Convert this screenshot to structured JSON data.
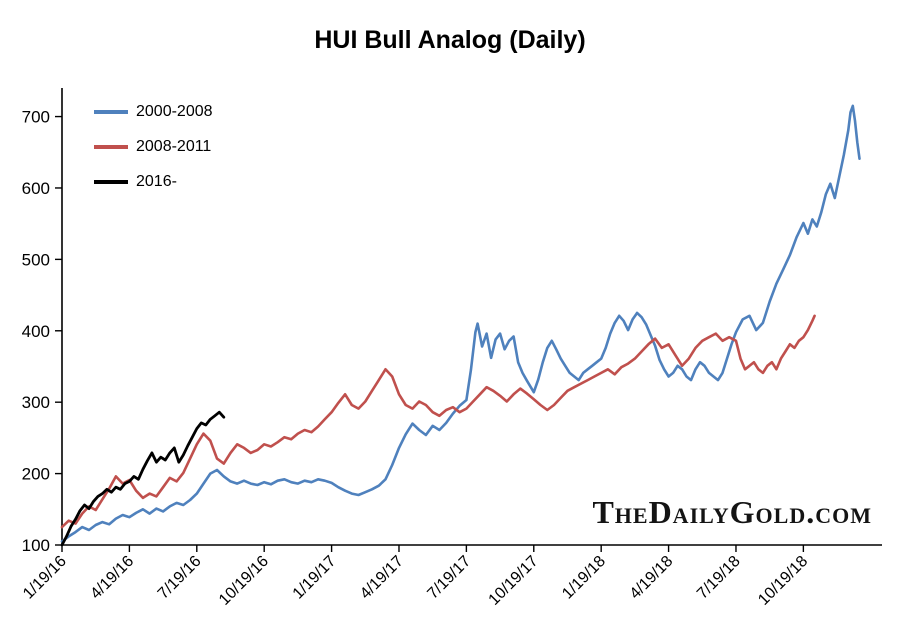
{
  "watermark": "TheDailyGold.com",
  "chart_data": {
    "type": "line",
    "title": "HUI Bull Analog (Daily)",
    "xlabel": "",
    "ylabel": "",
    "x_unit": "months since 1/19 start of each analog",
    "grid": false,
    "legend_position": "top-left-inside",
    "xlim": [
      0,
      36.5
    ],
    "ylim": [
      100,
      740
    ],
    "y_ticks": [
      100,
      200,
      300,
      400,
      500,
      600,
      700
    ],
    "x_tick_positions": [
      0,
      3,
      6,
      9,
      12,
      15,
      18,
      21,
      24,
      27,
      30,
      33
    ],
    "x_tick_labels": [
      "1/19/16",
      "4/19/16",
      "7/19/16",
      "10/19/16",
      "1/19/17",
      "4/19/17",
      "7/19/17",
      "10/19/17",
      "1/19/18",
      "4/19/18",
      "7/19/18",
      "10/19/18"
    ],
    "series": [
      {
        "name": "2000-2008",
        "color": "#4F81BD",
        "width": 2.6,
        "points": [
          [
            0,
            105
          ],
          [
            0.3,
            112
          ],
          [
            0.6,
            118
          ],
          [
            0.9,
            125
          ],
          [
            1.2,
            121
          ],
          [
            1.5,
            128
          ],
          [
            1.8,
            132
          ],
          [
            2.1,
            129
          ],
          [
            2.4,
            137
          ],
          [
            2.7,
            142
          ],
          [
            3,
            139
          ],
          [
            3.3,
            145
          ],
          [
            3.6,
            150
          ],
          [
            3.9,
            144
          ],
          [
            4.2,
            151
          ],
          [
            4.5,
            147
          ],
          [
            4.8,
            154
          ],
          [
            5.1,
            159
          ],
          [
            5.4,
            156
          ],
          [
            5.7,
            163
          ],
          [
            6,
            172
          ],
          [
            6.3,
            186
          ],
          [
            6.6,
            200
          ],
          [
            6.9,
            205
          ],
          [
            7.2,
            196
          ],
          [
            7.5,
            189
          ],
          [
            7.8,
            186
          ],
          [
            8.1,
            190
          ],
          [
            8.4,
            186
          ],
          [
            8.7,
            184
          ],
          [
            9,
            188
          ],
          [
            9.3,
            185
          ],
          [
            9.6,
            190
          ],
          [
            9.9,
            192
          ],
          [
            10.2,
            188
          ],
          [
            10.5,
            186
          ],
          [
            10.8,
            190
          ],
          [
            11.1,
            188
          ],
          [
            11.4,
            192
          ],
          [
            11.7,
            190
          ],
          [
            12,
            187
          ],
          [
            12.3,
            181
          ],
          [
            12.6,
            176
          ],
          [
            12.9,
            172
          ],
          [
            13.2,
            170
          ],
          [
            13.5,
            174
          ],
          [
            13.8,
            178
          ],
          [
            14.1,
            183
          ],
          [
            14.4,
            192
          ],
          [
            14.7,
            212
          ],
          [
            15,
            236
          ],
          [
            15.3,
            255
          ],
          [
            15.6,
            270
          ],
          [
            15.9,
            261
          ],
          [
            16.2,
            254
          ],
          [
            16.5,
            267
          ],
          [
            16.8,
            261
          ],
          [
            17.1,
            271
          ],
          [
            17.4,
            284
          ],
          [
            17.7,
            295
          ],
          [
            18,
            303
          ],
          [
            18.2,
            345
          ],
          [
            18.4,
            398
          ],
          [
            18.5,
            410
          ],
          [
            18.7,
            378
          ],
          [
            18.9,
            396
          ],
          [
            19.1,
            362
          ],
          [
            19.3,
            388
          ],
          [
            19.5,
            396
          ],
          [
            19.7,
            374
          ],
          [
            19.9,
            386
          ],
          [
            20.1,
            392
          ],
          [
            20.3,
            356
          ],
          [
            20.5,
            341
          ],
          [
            20.7,
            330
          ],
          [
            21,
            314
          ],
          [
            21.2,
            332
          ],
          [
            21.4,
            356
          ],
          [
            21.6,
            376
          ],
          [
            21.8,
            386
          ],
          [
            22,
            374
          ],
          [
            22.2,
            361
          ],
          [
            22.4,
            351
          ],
          [
            22.6,
            341
          ],
          [
            22.8,
            336
          ],
          [
            23,
            331
          ],
          [
            23.2,
            341
          ],
          [
            23.4,
            346
          ],
          [
            23.6,
            351
          ],
          [
            23.8,
            356
          ],
          [
            24,
            361
          ],
          [
            24.2,
            376
          ],
          [
            24.4,
            396
          ],
          [
            24.6,
            411
          ],
          [
            24.8,
            421
          ],
          [
            25,
            414
          ],
          [
            25.2,
            401
          ],
          [
            25.4,
            416
          ],
          [
            25.6,
            425
          ],
          [
            25.8,
            419
          ],
          [
            26,
            409
          ],
          [
            26.2,
            394
          ],
          [
            26.4,
            379
          ],
          [
            26.6,
            359
          ],
          [
            26.8,
            346
          ],
          [
            27,
            336
          ],
          [
            27.2,
            341
          ],
          [
            27.4,
            351
          ],
          [
            27.6,
            346
          ],
          [
            27.8,
            336
          ],
          [
            28,
            331
          ],
          [
            28.2,
            346
          ],
          [
            28.4,
            356
          ],
          [
            28.6,
            351
          ],
          [
            28.8,
            341
          ],
          [
            29,
            336
          ],
          [
            29.2,
            331
          ],
          [
            29.4,
            341
          ],
          [
            29.6,
            361
          ],
          [
            29.8,
            381
          ],
          [
            30,
            398
          ],
          [
            30.3,
            416
          ],
          [
            30.6,
            421
          ],
          [
            30.9,
            401
          ],
          [
            31.2,
            411
          ],
          [
            31.5,
            441
          ],
          [
            31.8,
            466
          ],
          [
            32.1,
            486
          ],
          [
            32.4,
            506
          ],
          [
            32.7,
            531
          ],
          [
            33,
            551
          ],
          [
            33.2,
            536
          ],
          [
            33.4,
            556
          ],
          [
            33.6,
            546
          ],
          [
            33.8,
            566
          ],
          [
            34,
            591
          ],
          [
            34.2,
            606
          ],
          [
            34.4,
            586
          ],
          [
            34.6,
            616
          ],
          [
            34.8,
            646
          ],
          [
            35,
            681
          ],
          [
            35.1,
            706
          ],
          [
            35.2,
            715
          ],
          [
            35.3,
            694
          ],
          [
            35.4,
            664
          ],
          [
            35.5,
            641
          ]
        ]
      },
      {
        "name": "2008-2011",
        "color": "#C0504D",
        "width": 2.6,
        "points": [
          [
            0,
            125
          ],
          [
            0.3,
            134
          ],
          [
            0.6,
            130
          ],
          [
            0.9,
            144
          ],
          [
            1.2,
            154
          ],
          [
            1.5,
            149
          ],
          [
            1.8,
            164
          ],
          [
            2.1,
            179
          ],
          [
            2.4,
            196
          ],
          [
            2.7,
            186
          ],
          [
            3,
            191
          ],
          [
            3.3,
            176
          ],
          [
            3.6,
            166
          ],
          [
            3.9,
            172
          ],
          [
            4.2,
            168
          ],
          [
            4.5,
            181
          ],
          [
            4.8,
            194
          ],
          [
            5.1,
            189
          ],
          [
            5.4,
            201
          ],
          [
            5.7,
            221
          ],
          [
            6,
            241
          ],
          [
            6.3,
            256
          ],
          [
            6.6,
            246
          ],
          [
            6.9,
            221
          ],
          [
            7.2,
            214
          ],
          [
            7.5,
            229
          ],
          [
            7.8,
            241
          ],
          [
            8.1,
            236
          ],
          [
            8.4,
            229
          ],
          [
            8.7,
            233
          ],
          [
            9,
            241
          ],
          [
            9.3,
            238
          ],
          [
            9.6,
            244
          ],
          [
            9.9,
            251
          ],
          [
            10.2,
            248
          ],
          [
            10.5,
            256
          ],
          [
            10.8,
            261
          ],
          [
            11.1,
            258
          ],
          [
            11.4,
            266
          ],
          [
            11.7,
            276
          ],
          [
            12,
            286
          ],
          [
            12.3,
            299
          ],
          [
            12.6,
            311
          ],
          [
            12.9,
            296
          ],
          [
            13.2,
            291
          ],
          [
            13.5,
            301
          ],
          [
            13.8,
            316
          ],
          [
            14.1,
            331
          ],
          [
            14.4,
            346
          ],
          [
            14.7,
            336
          ],
          [
            15,
            311
          ],
          [
            15.3,
            296
          ],
          [
            15.6,
            291
          ],
          [
            15.9,
            301
          ],
          [
            16.2,
            296
          ],
          [
            16.5,
            286
          ],
          [
            16.8,
            281
          ],
          [
            17.1,
            289
          ],
          [
            17.4,
            293
          ],
          [
            17.7,
            286
          ],
          [
            18,
            291
          ],
          [
            18.3,
            301
          ],
          [
            18.6,
            311
          ],
          [
            18.9,
            321
          ],
          [
            19.2,
            316
          ],
          [
            19.5,
            309
          ],
          [
            19.8,
            301
          ],
          [
            20.1,
            311
          ],
          [
            20.4,
            319
          ],
          [
            20.7,
            312
          ],
          [
            21,
            304
          ],
          [
            21.3,
            296
          ],
          [
            21.6,
            289
          ],
          [
            21.9,
            296
          ],
          [
            22.2,
            306
          ],
          [
            22.5,
            316
          ],
          [
            22.8,
            321
          ],
          [
            23.1,
            326
          ],
          [
            23.4,
            331
          ],
          [
            23.7,
            336
          ],
          [
            24,
            341
          ],
          [
            24.3,
            346
          ],
          [
            24.6,
            339
          ],
          [
            24.9,
            349
          ],
          [
            25.2,
            354
          ],
          [
            25.5,
            361
          ],
          [
            25.8,
            371
          ],
          [
            26.1,
            381
          ],
          [
            26.4,
            389
          ],
          [
            26.7,
            376
          ],
          [
            27,
            381
          ],
          [
            27.3,
            366
          ],
          [
            27.6,
            351
          ],
          [
            27.9,
            361
          ],
          [
            28.2,
            376
          ],
          [
            28.5,
            386
          ],
          [
            28.8,
            391
          ],
          [
            29.1,
            396
          ],
          [
            29.4,
            386
          ],
          [
            29.7,
            391
          ],
          [
            30,
            386
          ],
          [
            30.2,
            361
          ],
          [
            30.4,
            346
          ],
          [
            30.6,
            351
          ],
          [
            30.8,
            356
          ],
          [
            31,
            346
          ],
          [
            31.2,
            341
          ],
          [
            31.4,
            351
          ],
          [
            31.6,
            356
          ],
          [
            31.8,
            346
          ],
          [
            32,
            361
          ],
          [
            32.2,
            371
          ],
          [
            32.4,
            381
          ],
          [
            32.6,
            376
          ],
          [
            32.8,
            386
          ],
          [
            33,
            391
          ],
          [
            33.2,
            401
          ],
          [
            33.4,
            414
          ],
          [
            33.5,
            421
          ]
        ]
      },
      {
        "name": "2016-",
        "color": "#000000",
        "width": 2.8,
        "points": [
          [
            0,
            100
          ],
          [
            0.2,
            112
          ],
          [
            0.4,
            126
          ],
          [
            0.6,
            136
          ],
          [
            0.8,
            148
          ],
          [
            1,
            156
          ],
          [
            1.2,
            151
          ],
          [
            1.4,
            161
          ],
          [
            1.6,
            168
          ],
          [
            1.8,
            172
          ],
          [
            2,
            178
          ],
          [
            2.2,
            174
          ],
          [
            2.4,
            181
          ],
          [
            2.6,
            178
          ],
          [
            2.8,
            186
          ],
          [
            3,
            189
          ],
          [
            3.2,
            196
          ],
          [
            3.4,
            192
          ],
          [
            3.6,
            206
          ],
          [
            3.8,
            218
          ],
          [
            4,
            229
          ],
          [
            4.2,
            216
          ],
          [
            4.4,
            223
          ],
          [
            4.6,
            219
          ],
          [
            4.8,
            229
          ],
          [
            5,
            236
          ],
          [
            5.2,
            216
          ],
          [
            5.4,
            226
          ],
          [
            5.6,
            239
          ],
          [
            5.8,
            251
          ],
          [
            6,
            263
          ],
          [
            6.2,
            271
          ],
          [
            6.4,
            268
          ],
          [
            6.6,
            276
          ],
          [
            6.8,
            281
          ],
          [
            7,
            286
          ],
          [
            7.2,
            279
          ]
        ]
      }
    ]
  }
}
